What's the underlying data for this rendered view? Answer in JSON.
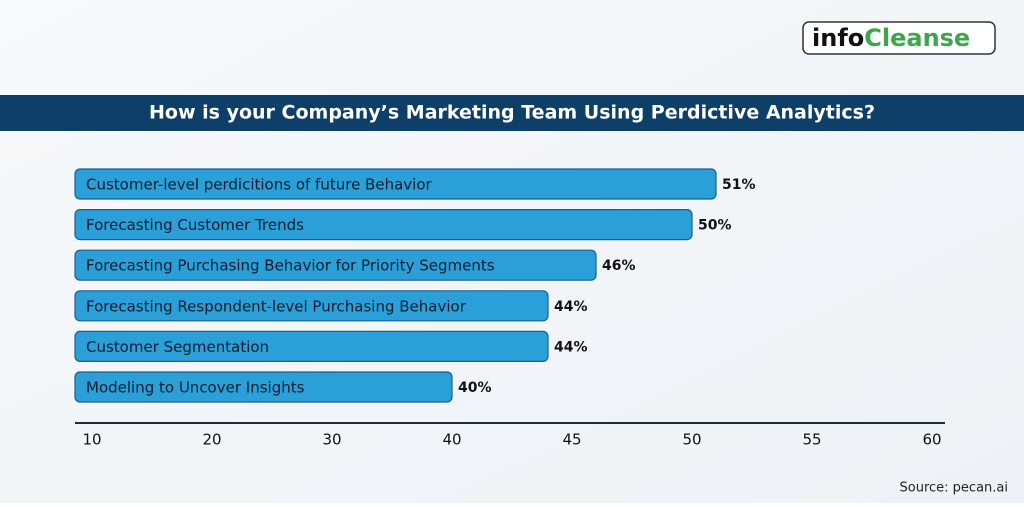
{
  "logo": {
    "first": "info",
    "second": "Cleanse"
  },
  "chart_data": {
    "type": "bar",
    "orientation": "horizontal",
    "title": "How is your Company’s Marketing Team Using Perdictive Analytics?",
    "categories": [
      "Customer-level perdicitions of future Behavior",
      "Forecasting Customer Trends",
      "Forecasting Purchasing Behavior for Priority Segments",
      "Forecasting Respondent-level Purchasing Behavior",
      "Customer Segmentation",
      "Modeling to Uncover Insights"
    ],
    "values": [
      51,
      50,
      46,
      44,
      44,
      40
    ],
    "value_labels": [
      "51%",
      "50%",
      "46%",
      "44%",
      "44%",
      "40%"
    ],
    "color": "#2a9fd8",
    "xlim": [
      10,
      60
    ],
    "xticks": [
      10,
      20,
      30,
      40,
      45,
      50,
      55,
      60
    ],
    "source": "Source: pecan.ai"
  }
}
